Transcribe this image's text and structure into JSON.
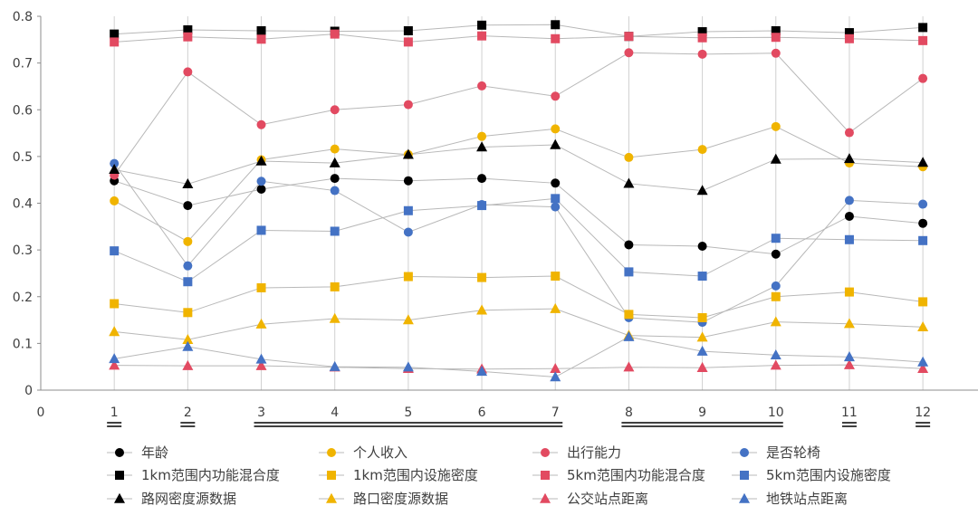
{
  "chart_data": {
    "type": "line",
    "x": [
      1,
      2,
      3,
      4,
      5,
      6,
      7,
      8,
      9,
      10,
      11,
      12
    ],
    "xlim": [
      0,
      12.75
    ],
    "ylim": [
      0,
      0.8
    ],
    "x_ticks": [
      "0",
      "1",
      "2",
      "3",
      "4",
      "5",
      "6",
      "7",
      "8",
      "9",
      "10",
      "11",
      "12"
    ],
    "y_ticks": [
      "0",
      "0.1",
      "0.2",
      "0.3",
      "0.4",
      "0.5",
      "0.6",
      "0.7",
      "0.8"
    ],
    "grid": "vertical",
    "legend_position": "bottom",
    "x_groups": [
      [
        1,
        1
      ],
      [
        2,
        2
      ],
      [
        3,
        7
      ],
      [
        8,
        10
      ],
      [
        11,
        11
      ],
      [
        12,
        12
      ]
    ],
    "series": [
      {
        "name": "年龄",
        "marker": "circle",
        "color": "#000000",
        "values": [
          0.448,
          0.395,
          0.43,
          0.453,
          0.448,
          0.453,
          0.443,
          0.311,
          0.308,
          0.291,
          0.372,
          0.357
        ]
      },
      {
        "name": "个人收入",
        "marker": "circle",
        "color": "#f0b400",
        "values": [
          0.405,
          0.318,
          0.493,
          0.516,
          0.504,
          0.543,
          0.559,
          0.498,
          0.515,
          0.564,
          0.486,
          0.478
        ]
      },
      {
        "name": "出行能力",
        "marker": "circle",
        "color": "#e24a61",
        "values": [
          0.46,
          0.681,
          0.568,
          0.6,
          0.611,
          0.651,
          0.629,
          0.722,
          0.719,
          0.721,
          0.551,
          0.667
        ]
      },
      {
        "name": "是否轮椅",
        "marker": "circle",
        "color": "#4472c4",
        "values": [
          0.485,
          0.266,
          0.447,
          0.427,
          0.338,
          0.397,
          0.392,
          0.155,
          0.145,
          0.223,
          0.406,
          0.398
        ]
      },
      {
        "name": "1km范围内功能混合度",
        "marker": "square",
        "color": "#000000",
        "values": [
          0.762,
          0.771,
          0.769,
          0.768,
          0.769,
          0.781,
          0.782,
          0.757,
          0.767,
          0.769,
          0.765,
          0.776
        ]
      },
      {
        "name": "1km范围内设施密度",
        "marker": "square",
        "color": "#f0b400",
        "values": [
          0.185,
          0.166,
          0.219,
          0.221,
          0.243,
          0.241,
          0.244,
          0.162,
          0.155,
          0.2,
          0.21,
          0.189
        ]
      },
      {
        "name": "5km范围内功能混合度",
        "marker": "square",
        "color": "#e24a61",
        "values": [
          0.745,
          0.756,
          0.751,
          0.762,
          0.745,
          0.758,
          0.752,
          0.757,
          0.754,
          0.755,
          0.752,
          0.748
        ]
      },
      {
        "name": "5km范围内设施密度",
        "marker": "square",
        "color": "#4472c4",
        "values": [
          0.298,
          0.232,
          0.342,
          0.34,
          0.384,
          0.395,
          0.41,
          0.253,
          0.244,
          0.325,
          0.322,
          0.32
        ]
      },
      {
        "name": "路网密度源数据",
        "marker": "triangle",
        "color": "#000000",
        "values": [
          0.472,
          0.441,
          0.49,
          0.486,
          0.504,
          0.52,
          0.525,
          0.442,
          0.427,
          0.494,
          0.495,
          0.487
        ]
      },
      {
        "name": "路口密度源数据",
        "marker": "triangle",
        "color": "#f0b400",
        "values": [
          0.125,
          0.108,
          0.141,
          0.153,
          0.15,
          0.171,
          0.174,
          0.117,
          0.113,
          0.146,
          0.142,
          0.135
        ]
      },
      {
        "name": "公交站点距离",
        "marker": "triangle",
        "color": "#e24a61",
        "values": [
          0.053,
          0.052,
          0.052,
          0.049,
          0.046,
          0.045,
          0.046,
          0.049,
          0.048,
          0.053,
          0.054,
          0.046
        ]
      },
      {
        "name": "地铁站点距离",
        "marker": "triangle",
        "color": "#4472c4",
        "values": [
          0.067,
          0.093,
          0.066,
          0.05,
          0.049,
          0.04,
          0.028,
          0.114,
          0.083,
          0.075,
          0.071,
          0.06
        ]
      }
    ]
  }
}
